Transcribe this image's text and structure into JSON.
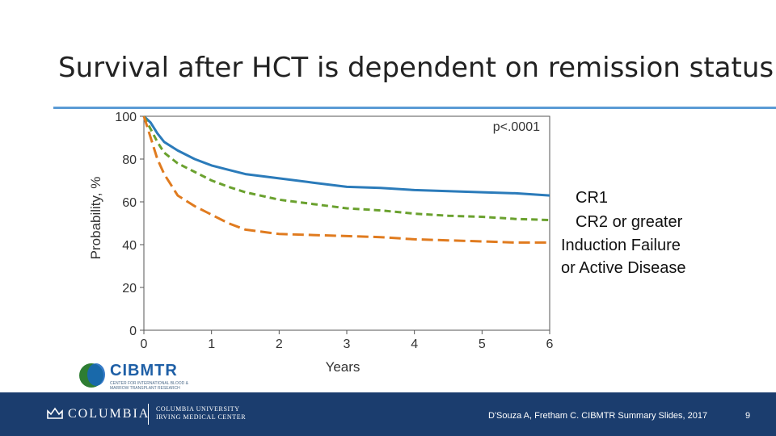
{
  "slide": {
    "title": "Survival after HCT is dependent on remission status"
  },
  "legend": [
    {
      "label": "CR1",
      "color": "#2b7bba"
    },
    {
      "label": "CR2 or greater",
      "color": "#6aa12e"
    },
    {
      "label": "Induction Failure",
      "color": "#e07b1f"
    },
    {
      "label": "or Active Disease",
      "color": "#e07b1f"
    }
  ],
  "chart_data": {
    "type": "line",
    "xlabel": "Years",
    "ylabel": "Probability, %",
    "xlim": [
      0,
      6
    ],
    "ylim": [
      0,
      100
    ],
    "xticks": [
      0,
      1,
      2,
      3,
      4,
      5,
      6
    ],
    "yticks": [
      0,
      20,
      40,
      60,
      80,
      100
    ],
    "annotation": "p<.0001",
    "grid": false,
    "series": [
      {
        "name": "CR1",
        "color": "#2b7bba",
        "dash": "solid",
        "x": [
          0,
          0.1,
          0.2,
          0.3,
          0.5,
          0.75,
          1,
          1.25,
          1.5,
          2,
          2.5,
          3,
          3.5,
          4,
          4.5,
          5,
          5.5,
          6
        ],
        "y": [
          100,
          97,
          92,
          88,
          84,
          80,
          77,
          75,
          73,
          71,
          69,
          67,
          66.5,
          65.5,
          65,
          64.5,
          64,
          63
        ]
      },
      {
        "name": "CR2 or greater",
        "color": "#6aa12e",
        "dash": "dashed",
        "x": [
          0,
          0.1,
          0.2,
          0.3,
          0.5,
          0.75,
          1,
          1.25,
          1.5,
          2,
          2.5,
          3,
          3.5,
          4,
          4.5,
          5,
          5.5,
          6
        ],
        "y": [
          100,
          94,
          88,
          83,
          78,
          74,
          70,
          67,
          64.5,
          61,
          59,
          57,
          56,
          54.5,
          53.5,
          53,
          52,
          51.5
        ]
      },
      {
        "name": "Induction Failure or Active Disease",
        "color": "#e07b1f",
        "dash": "dashed",
        "x": [
          0,
          0.1,
          0.2,
          0.3,
          0.4,
          0.5,
          0.75,
          1,
          1.25,
          1.5,
          2,
          2.5,
          3,
          3.5,
          4,
          4.5,
          5,
          5.5,
          6
        ],
        "y": [
          100,
          90,
          80,
          73,
          68,
          63,
          58,
          54,
          50,
          47,
          45,
          44.5,
          44,
          43.5,
          42.5,
          42,
          41.5,
          41,
          41
        ]
      }
    ]
  },
  "logo": {
    "name": "CIBMTR",
    "subtitle": "CENTER FOR INTERNATIONAL BLOOD & MARROW TRANSPLANT RESEARCH"
  },
  "footer": {
    "org": "COLUMBIA",
    "university_line1": "COLUMBIA UNIVERSITY",
    "university_line2": "IRVING MEDICAL CENTER",
    "citation": "D'Souza A, Fretham C. CIBMTR Summary Slides, 2017",
    "page": "9"
  }
}
